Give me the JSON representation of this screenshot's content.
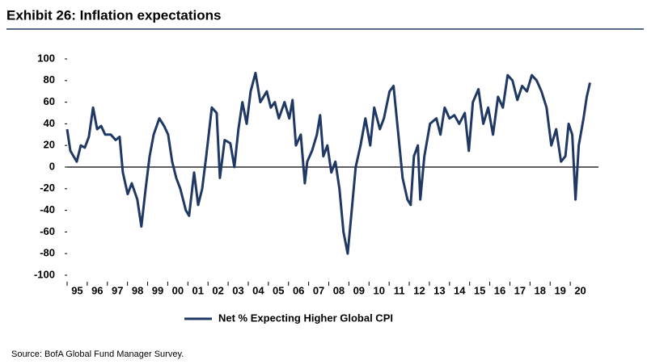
{
  "chart_data": {
    "type": "line",
    "title": "Exhibit 26: Inflation expectations",
    "source": "Source: BofA Global Fund Manager Survey.",
    "series": [
      {
        "name": "Net % Expecting Higher Global CPI",
        "color": "#1f3864",
        "x": [
          1995.0,
          1995.16,
          1995.48,
          1995.68,
          1995.88,
          1996.08,
          1996.29,
          1996.49,
          1996.69,
          1996.89,
          1997.17,
          1997.41,
          1997.61,
          1997.77,
          1998.01,
          1998.21,
          1998.49,
          1998.69,
          1998.9,
          1999.1,
          1999.3,
          1999.58,
          1999.82,
          2000.02,
          2000.22,
          2000.42,
          2000.62,
          2000.9,
          2001.06,
          2001.31,
          2001.51,
          2001.71,
          2001.91,
          2002.19,
          2002.43,
          2002.59,
          2002.83,
          2003.11,
          2003.31,
          2003.51,
          2003.71,
          2003.92,
          2004.12,
          2004.36,
          2004.6,
          2004.92,
          2005.12,
          2005.32,
          2005.52,
          2005.8,
          2006.04,
          2006.2,
          2006.37,
          2006.61,
          2006.81,
          2006.93,
          2007.17,
          2007.41,
          2007.57,
          2007.73,
          2007.93,
          2008.13,
          2008.33,
          2008.53,
          2008.73,
          2008.94,
          2009.14,
          2009.34,
          2009.58,
          2009.82,
          2010.06,
          2010.26,
          2010.54,
          2010.74,
          2011.02,
          2011.22,
          2011.43,
          2011.67,
          2011.91,
          2012.07,
          2012.23,
          2012.43,
          2012.55,
          2012.75,
          2013.03,
          2013.35,
          2013.55,
          2013.76,
          2014.0,
          2014.24,
          2014.48,
          2014.76,
          2014.96,
          2015.16,
          2015.44,
          2015.68,
          2015.92,
          2016.16,
          2016.41,
          2016.65,
          2016.89,
          2017.13,
          2017.37,
          2017.61,
          2017.85,
          2018.09,
          2018.33,
          2018.57,
          2018.82,
          2019.06,
          2019.3,
          2019.54,
          2019.76,
          2019.92,
          2020.1,
          2020.26,
          2020.42,
          2020.66,
          2020.82,
          2020.98
        ],
        "values": [
          35,
          15,
          5,
          20,
          18,
          28,
          55,
          35,
          38,
          30,
          30,
          25,
          28,
          -5,
          -25,
          -15,
          -30,
          -55,
          -20,
          10,
          30,
          45,
          38,
          30,
          5,
          -10,
          -20,
          -40,
          -45,
          -5,
          -35,
          -20,
          10,
          55,
          50,
          -10,
          25,
          22,
          0,
          35,
          60,
          40,
          70,
          87,
          60,
          70,
          55,
          60,
          45,
          60,
          45,
          62,
          20,
          30,
          -15,
          5,
          15,
          30,
          48,
          10,
          20,
          -5,
          5,
          -20,
          -60,
          -80,
          -40,
          0,
          20,
          45,
          20,
          55,
          35,
          45,
          70,
          75,
          35,
          -10,
          -30,
          -35,
          10,
          20,
          -30,
          10,
          40,
          45,
          30,
          55,
          45,
          48,
          40,
          50,
          15,
          60,
          72,
          40,
          55,
          30,
          65,
          55,
          85,
          80,
          62,
          75,
          70,
          85,
          80,
          70,
          55,
          20,
          35,
          5,
          10,
          40,
          30,
          -30,
          20,
          45,
          65,
          78
        ]
      }
    ],
    "xlim": [
      1995,
      2021
    ],
    "xticks": [
      {
        "value": 1995,
        "label": "95"
      },
      {
        "value": 1996,
        "label": "96"
      },
      {
        "value": 1997,
        "label": "97"
      },
      {
        "value": 1998,
        "label": "98"
      },
      {
        "value": 1999,
        "label": "99"
      },
      {
        "value": 2000,
        "label": "00"
      },
      {
        "value": 2001,
        "label": "01"
      },
      {
        "value": 2002,
        "label": "02"
      },
      {
        "value": 2003,
        "label": "03"
      },
      {
        "value": 2004,
        "label": "04"
      },
      {
        "value": 2005,
        "label": "05"
      },
      {
        "value": 2006,
        "label": "06"
      },
      {
        "value": 2007,
        "label": "07"
      },
      {
        "value": 2008,
        "label": "08"
      },
      {
        "value": 2009,
        "label": "09"
      },
      {
        "value": 2010,
        "label": "10"
      },
      {
        "value": 2011,
        "label": "11"
      },
      {
        "value": 2012,
        "label": "12"
      },
      {
        "value": 2013,
        "label": "13"
      },
      {
        "value": 2014,
        "label": "14"
      },
      {
        "value": 2015,
        "label": "15"
      },
      {
        "value": 2016,
        "label": "16"
      },
      {
        "value": 2017,
        "label": "17"
      },
      {
        "value": 2018,
        "label": "18"
      },
      {
        "value": 2019,
        "label": "19"
      },
      {
        "value": 2020,
        "label": "20"
      }
    ],
    "ylim": [
      -100,
      100
    ],
    "yticks": [
      -100,
      -80,
      -60,
      -40,
      -20,
      0,
      20,
      40,
      60,
      80,
      100
    ],
    "legend": "bottom"
  }
}
